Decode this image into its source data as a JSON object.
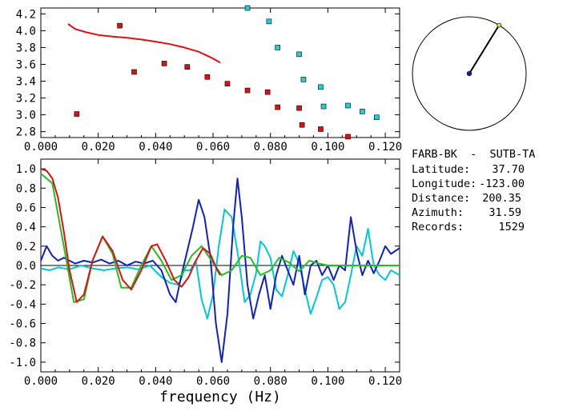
{
  "chart_data": [
    {
      "type": "scatter",
      "panel": "top",
      "xlabel": "",
      "ylabel": "",
      "xlim": [
        0.0,
        0.125
      ],
      "ylim": [
        2.73,
        4.27
      ],
      "x_ticks": [
        "0.000",
        "0.020",
        "0.040",
        "0.060",
        "0.080",
        "0.100",
        "0.120"
      ],
      "y_ticks": [
        "4.2",
        "4.0",
        "3.8",
        "3.6",
        "3.4",
        "3.2",
        "3.0",
        "2.8"
      ],
      "x_tick_values": [
        0.0,
        0.02,
        0.04,
        0.06,
        0.08,
        0.1,
        0.12
      ],
      "y_tick_values": [
        4.2,
        4.0,
        3.8,
        3.6,
        3.4,
        3.2,
        3.0,
        2.8
      ],
      "series": [
        {
          "kind": "line",
          "color": "#e01010",
          "x": [
            0.0095,
            0.012,
            0.016,
            0.02,
            0.025,
            0.03,
            0.035,
            0.04,
            0.045,
            0.05,
            0.055,
            0.06,
            0.0625
          ],
          "y": [
            4.08,
            4.02,
            3.98,
            3.95,
            3.93,
            3.915,
            3.895,
            3.87,
            3.84,
            3.8,
            3.75,
            3.67,
            3.62
          ]
        },
        {
          "kind": "markers",
          "color": "#e01010",
          "x": [
            0.0125,
            0.0275,
            0.0325,
            0.043,
            0.051,
            0.058,
            0.065,
            0.072,
            0.079,
            0.0825,
            0.09,
            0.091,
            0.0975,
            0.107
          ],
          "y": [
            3.01,
            4.06,
            3.51,
            3.61,
            3.57,
            3.45,
            3.37,
            3.29,
            3.27,
            3.09,
            3.08,
            2.88,
            2.83,
            2.74
          ]
        },
        {
          "kind": "markers",
          "color": "#20d0d8",
          "x": [
            0.072,
            0.0795,
            0.0825,
            0.09,
            0.0915,
            0.0975,
            0.0985,
            0.107,
            0.112,
            0.117
          ],
          "y": [
            4.27,
            4.11,
            3.8,
            3.72,
            3.42,
            3.33,
            3.1,
            3.11,
            3.04,
            2.97
          ]
        }
      ]
    },
    {
      "type": "line",
      "panel": "bottom",
      "xlabel": "frequency (Hz)",
      "ylabel": "",
      "xlim": [
        0.0,
        0.125
      ],
      "ylim": [
        -1.1,
        1.1
      ],
      "x_ticks": [
        "0.000",
        "0.020",
        "0.040",
        "0.060",
        "0.080",
        "0.100",
        "0.120"
      ],
      "y_ticks": [
        "1.0",
        "0.8",
        "0.6",
        "0.4",
        "0.2",
        "0.0",
        "-0.2",
        "-0.4",
        "-0.6",
        "-0.8",
        "-1.0"
      ],
      "x_tick_values": [
        0.0,
        0.02,
        0.04,
        0.06,
        0.08,
        0.1,
        0.12
      ],
      "y_tick_values": [
        1.0,
        0.8,
        0.6,
        0.4,
        0.2,
        0.0,
        -0.2,
        -0.4,
        -0.6,
        -0.8,
        -1.0
      ],
      "series": [
        {
          "color": "#00c8d8",
          "x": [
            0.0,
            0.003,
            0.006,
            0.01,
            0.014,
            0.018,
            0.022,
            0.026,
            0.03,
            0.034,
            0.038,
            0.042,
            0.045,
            0.048,
            0.05,
            0.052,
            0.054,
            0.056,
            0.058,
            0.06,
            0.062,
            0.064,
            0.0665,
            0.069,
            0.071,
            0.073,
            0.075,
            0.0765,
            0.078,
            0.08,
            0.082,
            0.084,
            0.086,
            0.088,
            0.09,
            0.092,
            0.094,
            0.096,
            0.098,
            0.1,
            0.102,
            0.104,
            0.106,
            0.108,
            0.11,
            0.112,
            0.114,
            0.116,
            0.118,
            0.12,
            0.122,
            0.125
          ],
          "y": [
            -0.03,
            -0.05,
            -0.02,
            -0.04,
            0.0,
            -0.03,
            -0.05,
            -0.03,
            -0.02,
            -0.04,
            0.0,
            -0.12,
            -0.18,
            -0.2,
            -0.05,
            -0.05,
            0.05,
            -0.35,
            -0.55,
            -0.3,
            0.2,
            0.58,
            0.5,
            0.05,
            -0.38,
            -0.3,
            -0.08,
            0.25,
            0.2,
            0.08,
            -0.25,
            -0.32,
            -0.1,
            0.15,
            0.02,
            -0.25,
            -0.5,
            -0.33,
            -0.15,
            -0.12,
            -0.2,
            -0.45,
            -0.38,
            -0.1,
            0.2,
            0.1,
            0.38,
            0.0,
            -0.1,
            -0.15,
            -0.05,
            -0.1
          ]
        },
        {
          "color": "#1020c8",
          "x": [
            0.0,
            0.002,
            0.004,
            0.006,
            0.008,
            0.01,
            0.012,
            0.015,
            0.018,
            0.021,
            0.024,
            0.027,
            0.03,
            0.033,
            0.036,
            0.039,
            0.042,
            0.045,
            0.047,
            0.049,
            0.051,
            0.053,
            0.055,
            0.057,
            0.059,
            0.061,
            0.063,
            0.065,
            0.067,
            0.0685,
            0.07,
            0.072,
            0.074,
            0.076,
            0.078,
            0.08,
            0.082,
            0.084,
            0.086,
            0.088,
            0.09,
            0.092,
            0.094,
            0.096,
            0.098,
            0.1,
            0.102,
            0.104,
            0.106,
            0.108,
            0.11,
            0.112,
            0.114,
            0.116,
            0.118,
            0.12,
            0.122,
            0.125
          ],
          "y": [
            0.05,
            0.2,
            0.1,
            0.05,
            0.08,
            0.05,
            0.02,
            0.05,
            0.03,
            0.06,
            0.02,
            0.05,
            0.0,
            0.04,
            0.02,
            0.05,
            -0.05,
            -0.3,
            -0.38,
            -0.1,
            0.15,
            0.4,
            0.68,
            0.5,
            0.1,
            -0.6,
            -1.0,
            -0.5,
            0.4,
            0.9,
            0.5,
            -0.2,
            -0.55,
            -0.3,
            -0.1,
            -0.45,
            -0.1,
            0.1,
            -0.05,
            -0.2,
            0.1,
            -0.3,
            0.0,
            0.05,
            -0.1,
            0.0,
            -0.15,
            0.0,
            -0.05,
            0.5,
            0.15,
            -0.1,
            0.05,
            -0.08,
            0.05,
            0.2,
            0.12,
            0.18
          ]
        },
        {
          "color": "#20c020",
          "x": [
            0.0,
            0.004,
            0.008,
            0.0115,
            0.015,
            0.018,
            0.0215,
            0.025,
            0.028,
            0.0315,
            0.035,
            0.0385,
            0.042,
            0.0455,
            0.049,
            0.0525,
            0.056,
            0.0595,
            0.063,
            0.0665,
            0.07,
            0.073,
            0.0765,
            0.08,
            0.083,
            0.0865,
            0.09,
            0.0935,
            0.097,
            0.1,
            0.104,
            0.108,
            0.112,
            0.116,
            0.12,
            0.125
          ],
          "y": [
            0.95,
            0.85,
            0.2,
            -0.38,
            -0.35,
            0.05,
            0.3,
            0.12,
            -0.23,
            -0.23,
            0.0,
            0.2,
            0.05,
            -0.15,
            -0.1,
            0.1,
            0.2,
            0.05,
            -0.1,
            -0.05,
            0.1,
            0.08,
            -0.1,
            -0.05,
            0.08,
            0.03,
            -0.06,
            0.05,
            0.02,
            0.0,
            0.0,
            0.0,
            0.0,
            0.0,
            0.0,
            0.0
          ]
        },
        {
          "color": "#e01010",
          "x": [
            0.0,
            0.002,
            0.004,
            0.006,
            0.008,
            0.01,
            0.0125,
            0.015,
            0.018,
            0.0215,
            0.025,
            0.0285,
            0.0315,
            0.035,
            0.0385,
            0.0405,
            0.0435,
            0.0465,
            0.049,
            0.0515,
            0.054,
            0.0565,
            0.059,
            0.0615,
            0.0625
          ],
          "y": [
            1.0,
            0.98,
            0.9,
            0.7,
            0.35,
            -0.05,
            -0.38,
            -0.3,
            0.05,
            0.3,
            0.15,
            -0.15,
            -0.25,
            -0.05,
            0.2,
            0.22,
            0.05,
            -0.15,
            -0.22,
            -0.12,
            0.05,
            0.18,
            0.12,
            -0.05,
            -0.1
          ]
        }
      ]
    }
  ],
  "polar": {
    "azimuth": 31.59
  },
  "info": {
    "station_pair": "FARB-BK  -  SUTB-TA",
    "latitude_label": "Latitude:",
    "latitude_value": "37.70",
    "longitude_label": "Longitude:",
    "longitude_value": "-123.00",
    "distance_label": "Distance:",
    "distance_value": "200.35",
    "azimuth_label": "Azimuth:",
    "azimuth_value": "31.59",
    "records_label": "Records:",
    "records_value": "1529"
  }
}
